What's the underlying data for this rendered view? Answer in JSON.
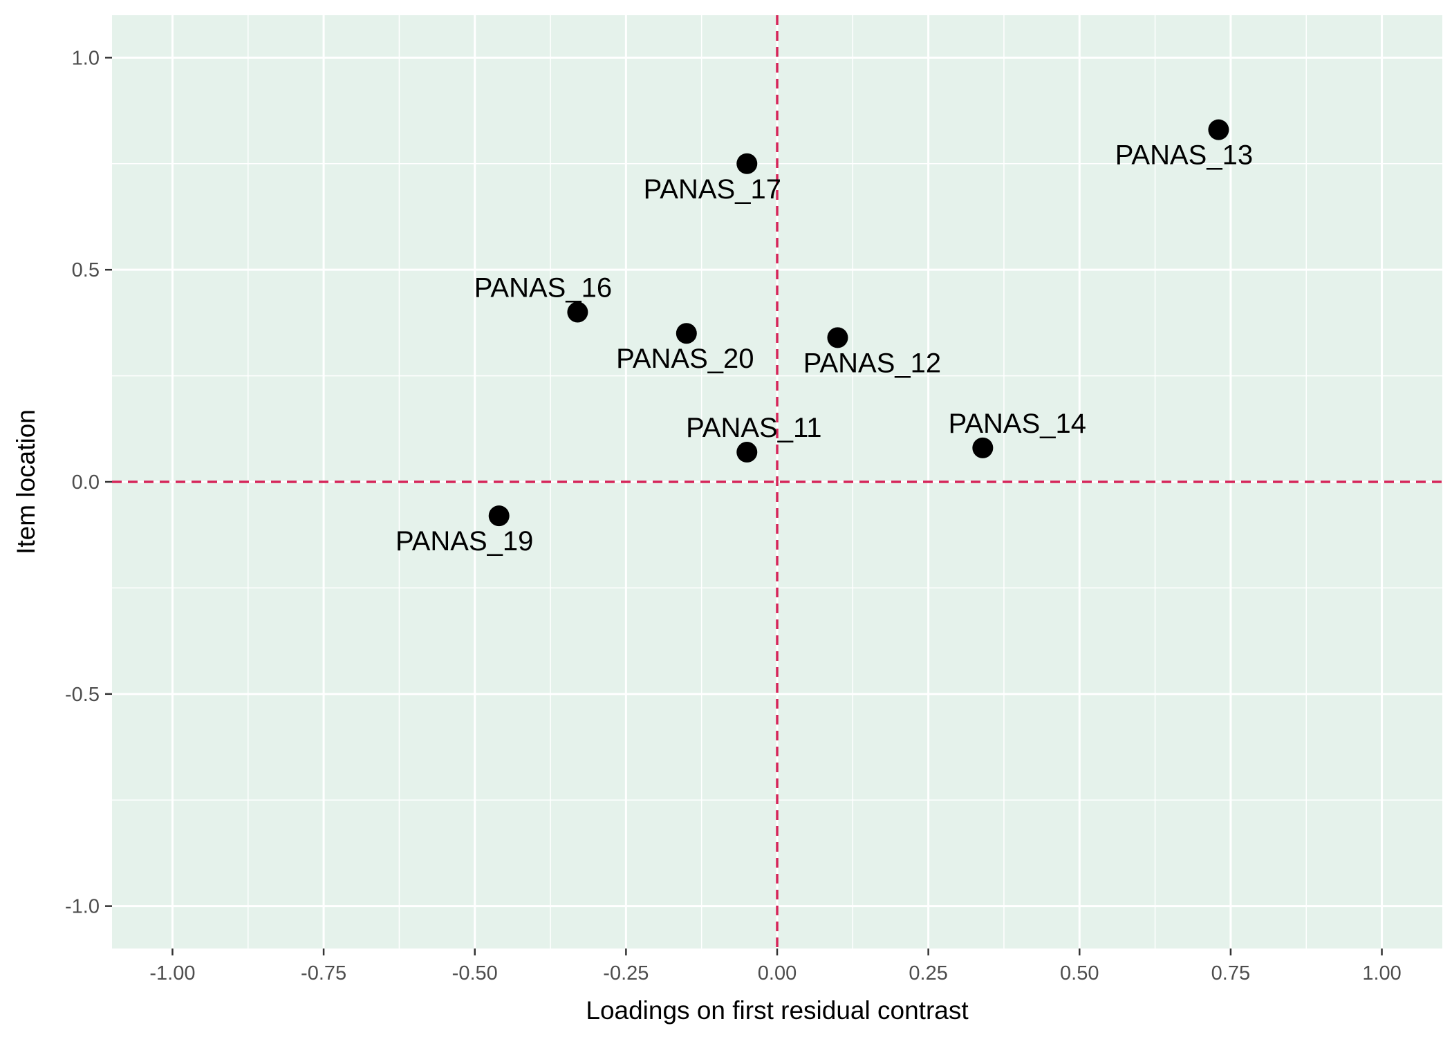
{
  "chart_data": {
    "type": "scatter",
    "title": "",
    "xlabel": "Loadings on first residual contrast",
    "ylabel": "Item location",
    "xlim": [
      -1.1,
      1.1
    ],
    "ylim": [
      -1.1,
      1.1
    ],
    "x_ticks": [
      -1.0,
      -0.75,
      -0.5,
      -0.25,
      0.0,
      0.25,
      0.5,
      0.75,
      1.0
    ],
    "x_tick_labels": [
      "-1.00",
      "-0.75",
      "-0.50",
      "-0.25",
      "0.00",
      "0.25",
      "0.50",
      "0.75",
      "1.00"
    ],
    "y_ticks": [
      -1.0,
      -0.5,
      0.0,
      0.5,
      1.0
    ],
    "y_tick_labels": [
      "-1.0",
      "-0.5",
      "0.0",
      "0.5",
      "1.0"
    ],
    "grid": true,
    "reference_lines": {
      "x": 0.0,
      "y": 0.0,
      "style": "dashed"
    },
    "points": [
      {
        "label": "PANAS_11",
        "x": -0.05,
        "y": 0.07
      },
      {
        "label": "PANAS_12",
        "x": 0.1,
        "y": 0.34
      },
      {
        "label": "PANAS_13",
        "x": 0.73,
        "y": 0.83
      },
      {
        "label": "PANAS_14",
        "x": 0.34,
        "y": 0.08
      },
      {
        "label": "PANAS_16",
        "x": -0.33,
        "y": 0.4
      },
      {
        "label": "PANAS_17",
        "x": -0.05,
        "y": 0.75
      },
      {
        "label": "PANAS_19",
        "x": -0.46,
        "y": -0.08
      },
      {
        "label": "PANAS_20",
        "x": -0.15,
        "y": 0.35
      }
    ],
    "colors": {
      "panel_background": "#e5f2eb",
      "grid": "#ffffff",
      "reference_line": "#d6265a",
      "point": "#000000"
    }
  }
}
